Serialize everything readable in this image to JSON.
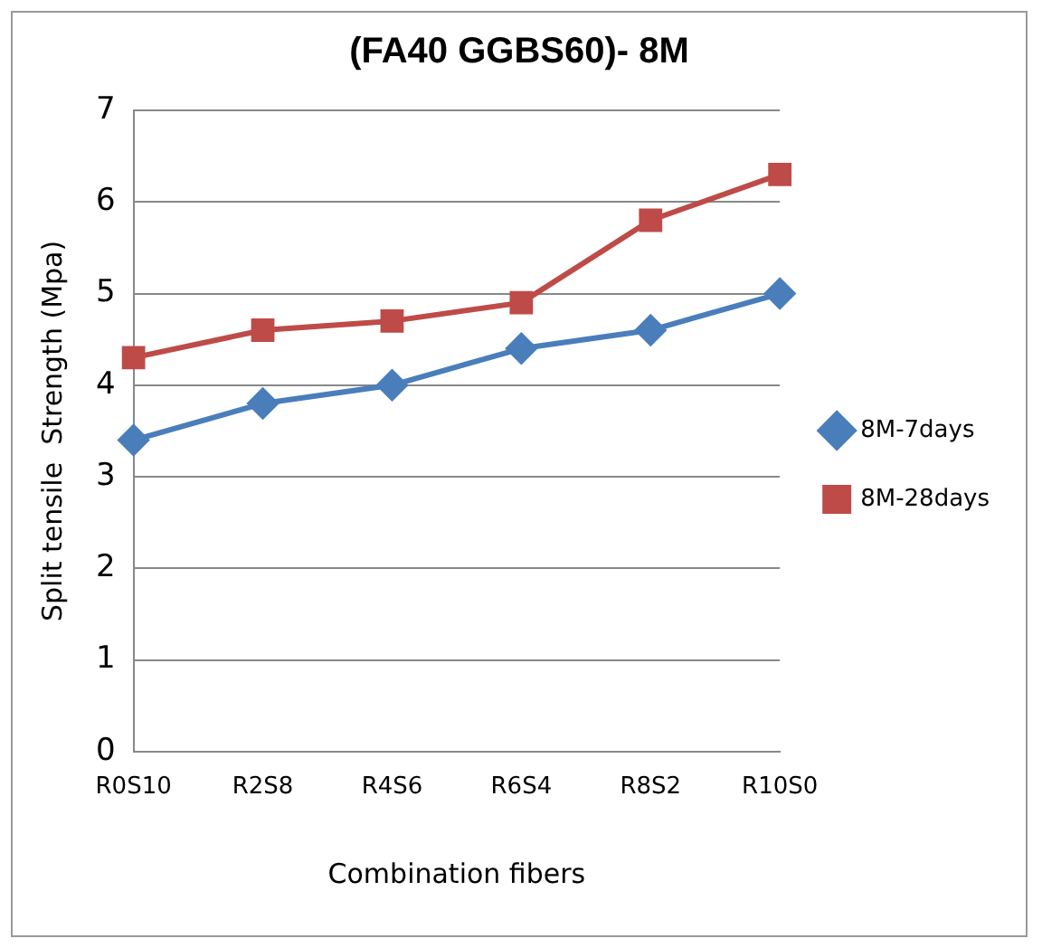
{
  "chart_data": {
    "type": "line",
    "title": "(FA40 GGBS60)- 8M",
    "xlabel": "Combination fibers",
    "ylabel": "Split tensile  Strength (Mpa)",
    "categories": [
      "R0S10",
      "R2S8",
      "R4S6",
      "R6S4",
      "R8S2",
      "R10S0"
    ],
    "series": [
      {
        "name": "8M-7days",
        "color": "#4a7ebb",
        "marker": "diamond",
        "values": [
          3.4,
          3.8,
          4.0,
          4.4,
          4.6,
          5.0
        ]
      },
      {
        "name": "8M-28days",
        "color": "#be4b48",
        "marker": "square",
        "values": [
          4.3,
          4.6,
          4.7,
          4.9,
          5.8,
          6.3
        ]
      }
    ],
    "ylim": [
      0,
      7
    ],
    "yticks": [
      0,
      1,
      2,
      3,
      4,
      5,
      6,
      7
    ],
    "grid": "y",
    "legend": "right",
    "line_style": "solid"
  }
}
